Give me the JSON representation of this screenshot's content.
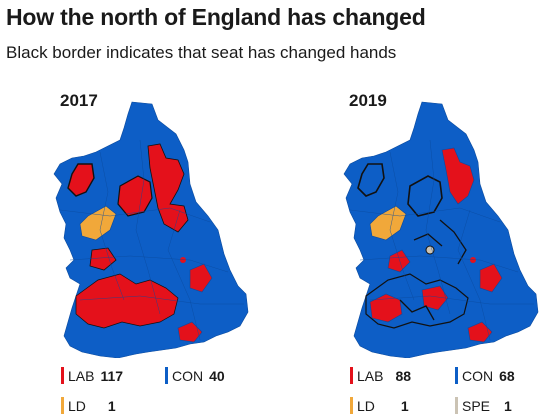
{
  "header": {
    "title": "How the north of England has changed",
    "subtitle": "Black border indicates that seat has changed hands"
  },
  "colors": {
    "lab": "#e4111b",
    "con": "#0d5ec6",
    "ld": "#f1a83a",
    "spe": "#cbc3b4",
    "border": "#111111"
  },
  "maps": [
    {
      "year": "2017",
      "legend": [
        {
          "party": "LAB",
          "count": "117"
        },
        {
          "party": "CON",
          "count": "40"
        },
        {
          "party": "LD",
          "count": "1"
        }
      ]
    },
    {
      "year": "2019",
      "legend": [
        {
          "party": "LAB",
          "count": "88"
        },
        {
          "party": "CON",
          "count": "68"
        },
        {
          "party": "LD",
          "count": "1"
        },
        {
          "party": "SPE",
          "count": "1"
        }
      ]
    }
  ]
}
